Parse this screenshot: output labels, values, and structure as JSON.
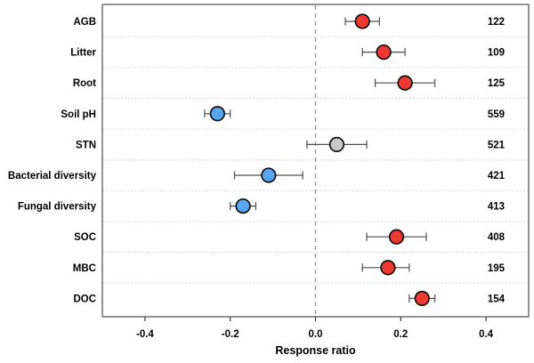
{
  "chart_data": {
    "type": "scatter",
    "subtype": "forest-plot",
    "title": "",
    "xlabel": "Response ratio",
    "xlim": [
      -0.5,
      0.5
    ],
    "x_ticks": [
      -0.4,
      -0.2,
      0.0,
      0.2,
      0.4
    ],
    "x_tick_labels": [
      "-0.4",
      "-0.2",
      "0.0",
      "0.2",
      "0.4"
    ],
    "reference_line_x": 0.0,
    "legend": "none",
    "grid": "dotted horizontal row separators",
    "colors": {
      "increase": "#EF3A33",
      "decrease": "#58A6F0",
      "neutral": "#C9C9C9",
      "reference_line": "#999999",
      "gridline": "#cfcfcf",
      "border": "#666666",
      "error_bar": "#4d4d4d",
      "marker_outline": "#111111"
    },
    "points": [
      {
        "label": "AGB",
        "value": 0.11,
        "ci_low": 0.07,
        "ci_high": 0.15,
        "n": "122",
        "color": "increase"
      },
      {
        "label": "Litter",
        "value": 0.16,
        "ci_low": 0.11,
        "ci_high": 0.21,
        "n": "109",
        "color": "increase"
      },
      {
        "label": "Root",
        "value": 0.21,
        "ci_low": 0.14,
        "ci_high": 0.28,
        "n": "125",
        "color": "increase"
      },
      {
        "label": "Soil pH",
        "value": -0.23,
        "ci_low": -0.26,
        "ci_high": -0.2,
        "n": "559",
        "color": "decrease"
      },
      {
        "label": "STN",
        "value": 0.05,
        "ci_low": -0.02,
        "ci_high": 0.12,
        "n": "521",
        "color": "neutral"
      },
      {
        "label": "Bacterial diversity",
        "value": -0.11,
        "ci_low": -0.19,
        "ci_high": -0.03,
        "n": "421",
        "color": "decrease"
      },
      {
        "label": "Fungal diversity",
        "value": -0.17,
        "ci_low": -0.2,
        "ci_high": -0.14,
        "n": "413",
        "color": "decrease"
      },
      {
        "label": "SOC",
        "value": 0.19,
        "ci_low": 0.12,
        "ci_high": 0.26,
        "n": "408",
        "color": "increase"
      },
      {
        "label": "MBC",
        "value": 0.17,
        "ci_low": 0.11,
        "ci_high": 0.22,
        "n": "195",
        "color": "increase"
      },
      {
        "label": "DOC",
        "value": 0.25,
        "ci_low": 0.22,
        "ci_high": 0.28,
        "n": "154",
        "color": "increase"
      }
    ]
  }
}
